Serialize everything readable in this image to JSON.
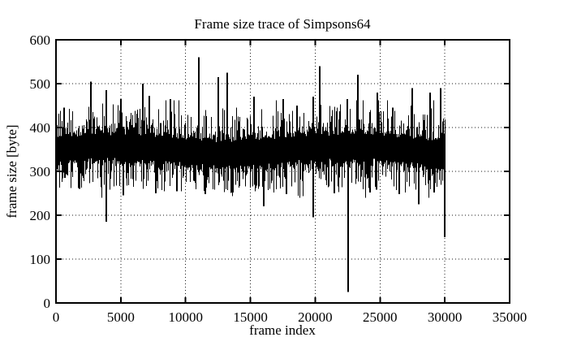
{
  "figure": {
    "background_color": "#ffffff",
    "foreground_color": "#000000",
    "grid_color": "#1a1a1a"
  },
  "chart_data": {
    "type": "line",
    "title": "Frame size trace of Simpsons64",
    "xlabel": "frame index",
    "ylabel": "frame size [byte]",
    "xlim": [
      0,
      35000
    ],
    "ylim": [
      0,
      600
    ],
    "xticks": [
      0,
      5000,
      10000,
      15000,
      20000,
      25000,
      30000,
      35000
    ],
    "yticks": [
      0,
      100,
      200,
      300,
      400,
      500,
      600
    ],
    "grid": true,
    "grid_style": "dotted",
    "legend": "none",
    "series": [
      {
        "name": "frame size trace",
        "style": "dense black vertical min-max trace (thousands of points per pixel column)",
        "x_start": 0,
        "x_end": 30000,
        "mean": 350,
        "solid_core_band": [
          318,
          392
        ],
        "typical_hair_band": [
          240,
          462
        ],
        "noise_seed": 20,
        "spikes": [
          [
            600,
            445
          ],
          [
            2700,
            505
          ],
          [
            3900,
            485
          ],
          [
            5000,
            465
          ],
          [
            6700,
            500
          ],
          [
            7200,
            472
          ],
          [
            8800,
            465
          ],
          [
            11000,
            560
          ],
          [
            12500,
            515
          ],
          [
            13200,
            525
          ],
          [
            15300,
            470
          ],
          [
            17500,
            465
          ],
          [
            18600,
            450
          ],
          [
            19850,
            470
          ],
          [
            20350,
            540
          ],
          [
            22500,
            465
          ],
          [
            23300,
            520
          ],
          [
            24800,
            480
          ],
          [
            26000,
            445
          ],
          [
            27500,
            490
          ],
          [
            28850,
            480
          ],
          [
            29700,
            490
          ]
        ],
        "dips": [
          [
            1800,
            260
          ],
          [
            3900,
            185
          ],
          [
            5200,
            245
          ],
          [
            7700,
            250
          ],
          [
            9300,
            255
          ],
          [
            11500,
            248
          ],
          [
            13600,
            252
          ],
          [
            16000,
            220
          ],
          [
            17800,
            248
          ],
          [
            19850,
            195
          ],
          [
            21500,
            250
          ],
          [
            22540,
            25
          ],
          [
            24200,
            252
          ],
          [
            26500,
            248
          ],
          [
            28000,
            225
          ],
          [
            29200,
            252
          ],
          [
            30000,
            150
          ]
        ],
        "max_point": [
          11000,
          560
        ],
        "min_point": [
          22540,
          25
        ]
      }
    ]
  }
}
